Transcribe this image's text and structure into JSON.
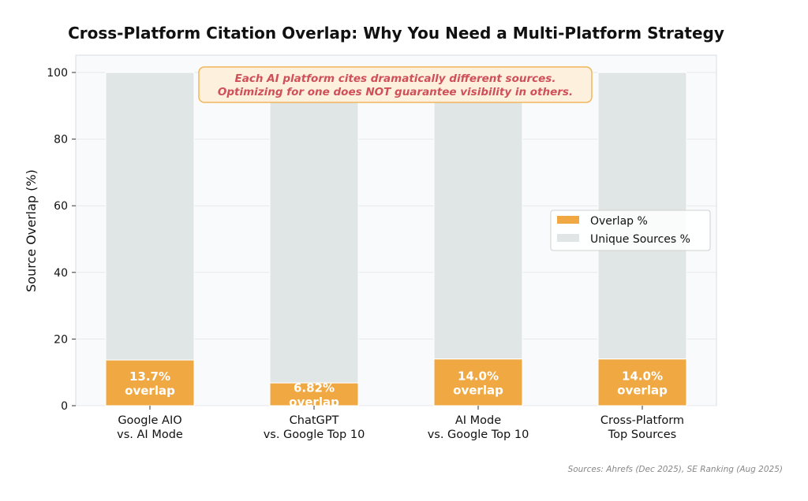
{
  "chart_data": {
    "type": "bar",
    "stacked": true,
    "title": "Cross-Platform Citation Overlap: Why You Need a Multi-Platform Strategy",
    "xlabel": "",
    "ylabel": "Source Overlap (%)",
    "ylim": [
      0,
      100
    ],
    "yticks": [
      "0",
      "20",
      "40",
      "60",
      "80",
      "100"
    ],
    "grid": true,
    "legend_position": "center-right",
    "categories": [
      [
        "Google AIO",
        "vs. AI Mode"
      ],
      [
        "ChatGPT",
        "vs. Google Top 10"
      ],
      [
        "AI Mode",
        "vs. Google Top 10"
      ],
      [
        "Cross-Platform",
        "Top Sources"
      ]
    ],
    "series": [
      {
        "name": "Overlap %",
        "color": "#f0a843",
        "values": [
          13.7,
          6.82,
          14.0,
          14.0
        ]
      },
      {
        "name": "Unique Sources %",
        "color": "#dfe6e5",
        "values": [
          86.3,
          93.18,
          86.0,
          86.0
        ]
      }
    ],
    "data_labels": [
      [
        "13.7%",
        "overlap"
      ],
      [
        "6.82%",
        "overlap"
      ],
      [
        "14.0%",
        "overlap"
      ],
      [
        "14.0%",
        "overlap"
      ]
    ],
    "annotation": [
      "Each AI platform cites dramatically different sources.",
      "Optimizing for one does NOT guarantee visibility in others."
    ],
    "source_note": "Sources: Ahrefs (Dec 2025), SE Ranking (Aug 2025)"
  }
}
